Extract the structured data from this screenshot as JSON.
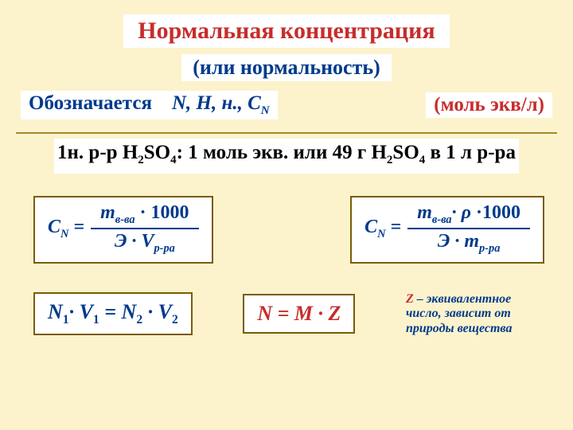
{
  "colors": {
    "background": "#fcf3cd",
    "title": "#c72c2c",
    "primary": "#003a8c",
    "box_border": "#7a5c00",
    "divider": "#a58a2a",
    "box_bg": "#ffffff"
  },
  "title": "Нормальная концентрация",
  "subtitle": "(или нормальность)",
  "notation": {
    "label": "Обозначается",
    "symbols": "N,  Н,  н.,  C",
    "sub": "N",
    "unit": "(моль экв/л)"
  },
  "example": {
    "prefix": "1н. р-р H",
    "s1sub": "2",
    "mid1": "SO",
    "s2sub": "4",
    "mid2": ": 1 моль экв. или 49 г H",
    "s3sub": "2",
    "mid3": "SO",
    "s4sub": "4",
    "suffix": " в 1 л р-ра"
  },
  "formula1": {
    "lhs_c": "C",
    "lhs_sub": "N",
    "eq": " =",
    "num_m": "m",
    "num_sub": "в-ва",
    "num_tail": " · 1000",
    "den_e": "Э · ",
    "den_v": "V",
    "den_sub": "р-ра"
  },
  "formula2": {
    "lhs_c": "C",
    "lhs_sub": "N",
    "eq": " =",
    "num_m": "m",
    "num_sub": "в-ва",
    "num_mid": "· ",
    "num_rho": "ρ",
    "num_tail": " ·1000",
    "den_e": "Э · ",
    "den_m": "m",
    "den_sub": "р-ра"
  },
  "dilution": {
    "n1": "N",
    "s1": "1",
    "dot1": "· ",
    "v1": "V",
    "sv1": "1",
    "eq": "  =  ",
    "n2": "N",
    "s2": "2",
    "dot2": " · ",
    "v2": "V",
    "sv2": "2"
  },
  "nm": {
    "text": "N = M · Z"
  },
  "note": {
    "z": "Z",
    "rest": " – эквивалентное число, зависит от природы вещества"
  }
}
